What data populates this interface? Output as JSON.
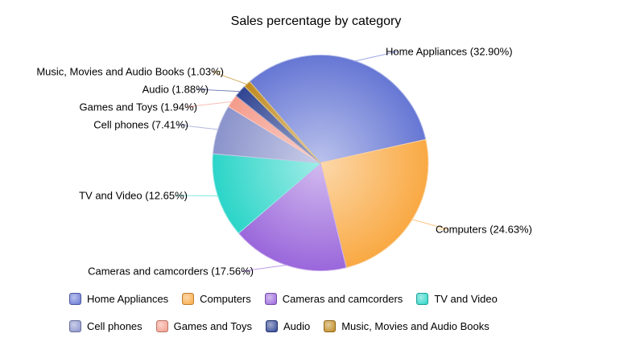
{
  "title": "Sales percentage by category",
  "chart_data": {
    "type": "pie",
    "title": "Sales percentage by category",
    "categories": [
      "Home Appliances",
      "Computers",
      "Cameras and camcorders",
      "TV and Video",
      "Cell phones",
      "Games and Toys",
      "Audio",
      "Music, Movies and Audio Books"
    ],
    "values": [
      32.9,
      24.63,
      17.56,
      12.65,
      7.41,
      1.94,
      1.88,
      1.03
    ],
    "unit": "%",
    "slice_labels": [
      "Home Appliances (32.90%)",
      "Computers (24.63%)",
      "Cameras and camcorders (17.56%)",
      "TV and Video (12.65%)",
      "Cell phones (7.41%)",
      "Games and Toys (1.94%)",
      "Audio (1.88%)",
      "Music, Movies and Audio Books (1.03%)"
    ],
    "colors": [
      "#6677d4",
      "#f9a943",
      "#9a67db",
      "#2bd5c8",
      "#8a93cb",
      "#f49b8b",
      "#2f4492",
      "#c08a1f"
    ],
    "label_text_color": "#000000",
    "background_color": "#ffffff",
    "start_angle_deg": 131,
    "direction": "clockwise",
    "grid": false,
    "legend_position": "bottom"
  }
}
